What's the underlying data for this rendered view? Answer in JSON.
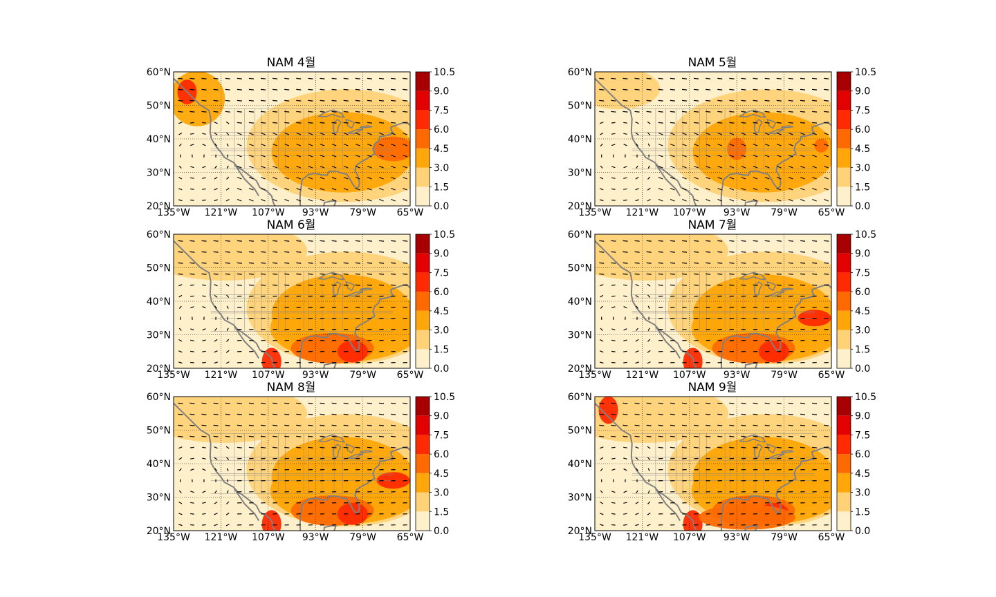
{
  "panels": [
    {
      "title": "NAM 4월",
      "month": 4
    },
    {
      "title": "NAM 5월",
      "month": 5
    },
    {
      "title": "NAM 6월",
      "month": 6
    },
    {
      "title": "NAM 7월",
      "month": 7
    },
    {
      "title": "NAM 8월",
      "month": 8
    },
    {
      "title": "NAM 9월",
      "month": 9
    }
  ],
  "axes": {
    "lon_ticks": [
      "135°W",
      "121°W",
      "107°W",
      "93°W",
      "79°W",
      "65°W"
    ],
    "lat_ticks": [
      "60°N",
      "50°N",
      "40°N",
      "30°N",
      "20°N"
    ],
    "lon_range": [
      -135,
      -65
    ],
    "lat_range": [
      20,
      60
    ]
  },
  "colorbar": {
    "ticks": [
      "10.5",
      "9.0",
      "7.5",
      "6.0",
      "4.5",
      "3.0",
      "1.5",
      "0.0"
    ],
    "levels": [
      0,
      1.5,
      3,
      4.5,
      6,
      7.5,
      9,
      10.5
    ],
    "colors": [
      "#fff0cc",
      "#ffd278",
      "#ffa60a",
      "#ff6a00",
      "#ff2a00",
      "#e30000",
      "#a80000"
    ]
  },
  "colors": {
    "coastline": "#808080",
    "arrow": "#000000",
    "grid": "#000000"
  }
}
